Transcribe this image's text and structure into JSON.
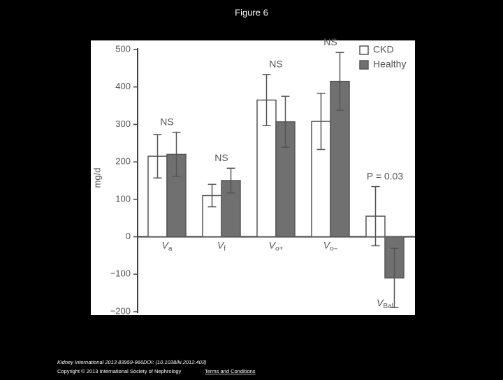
{
  "title": "Figure 6",
  "chart_data": {
    "type": "bar",
    "ylabel": "mg/d",
    "categories": [
      [
        "V",
        "a"
      ],
      [
        "V",
        "f"
      ],
      [
        "V",
        "o+"
      ],
      [
        "V",
        "o–"
      ],
      [
        "V",
        "Bal"
      ]
    ],
    "annotations": [
      "NS",
      "NS",
      "NS",
      "NS",
      "P = 0.03"
    ],
    "series": [
      {
        "name": "CKD",
        "color": "#ffffff",
        "values": [
          215,
          110,
          365,
          308,
          55
        ],
        "errors": [
          58,
          30,
          68,
          75,
          79
        ]
      },
      {
        "name": "Healthy",
        "color": "#707070",
        "values": [
          220,
          150,
          307,
          415,
          -110
        ],
        "errors": [
          59,
          33,
          68,
          77,
          79
        ]
      }
    ],
    "ylim": [
      -200,
      500
    ],
    "yticks": [
      {
        "value": -200,
        "label": "−200"
      },
      {
        "value": -100,
        "label": "−100"
      },
      0,
      100,
      200,
      300,
      400,
      500
    ],
    "legend": "upper right"
  },
  "footer": {
    "citation": "Kidney International 2013 83959-966DOI: (10.1038/ki.2012.403)",
    "copyright": "Copyright © 2013 International Society of Nephrology",
    "link": "Terms and Conditions"
  }
}
